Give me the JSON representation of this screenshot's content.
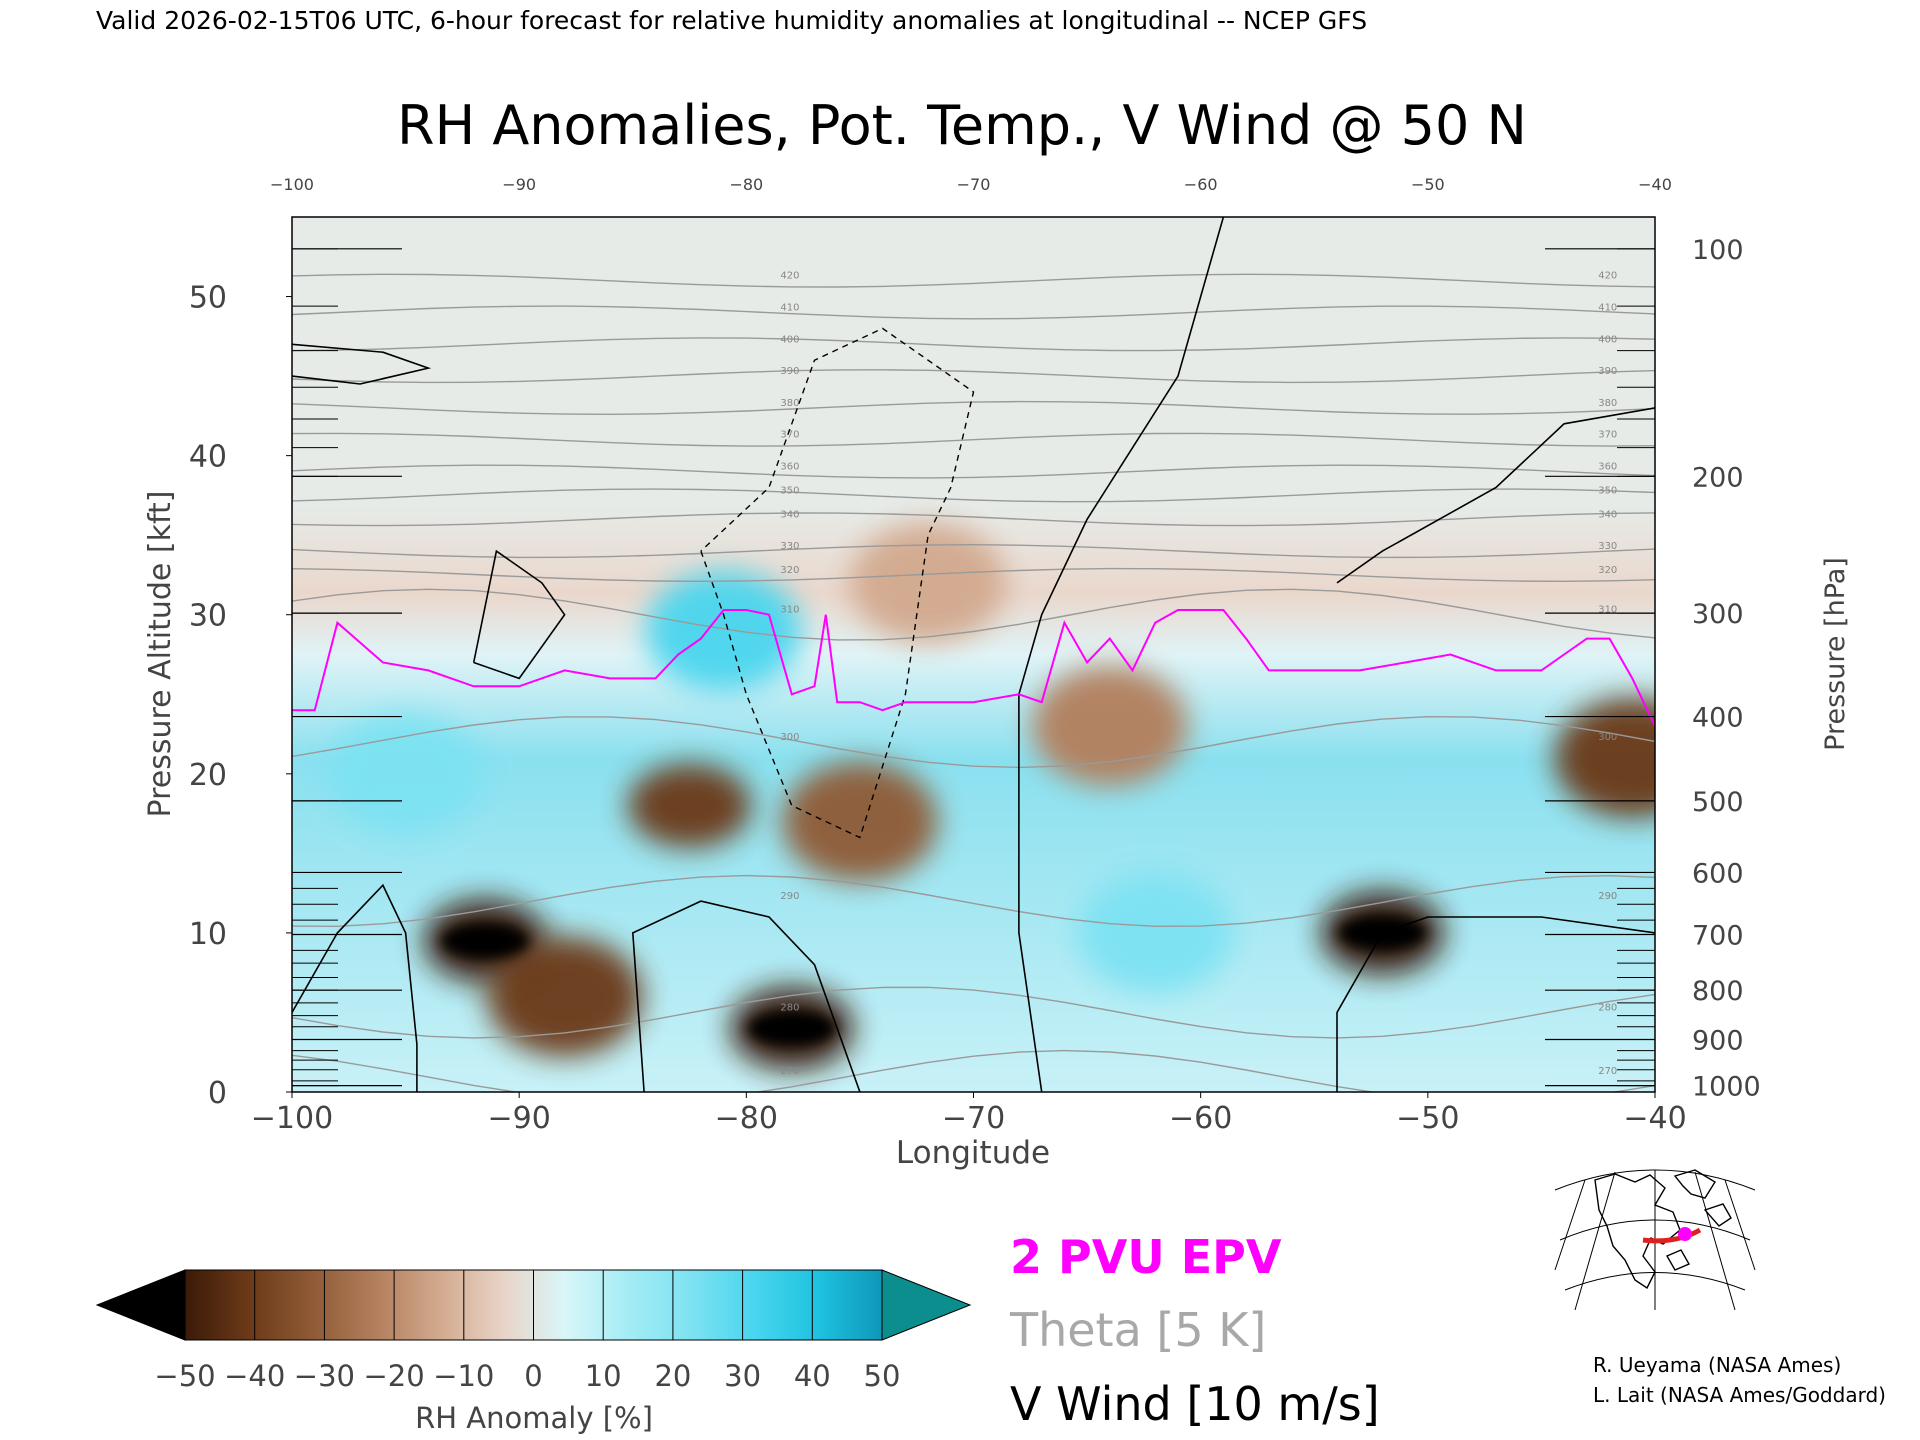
{
  "header": {
    "valid_line": "Valid 2026-02-15T06 UTC, 6-hour forecast for relative humidity anomalies at longitudinal -- NCEP GFS"
  },
  "chart_data": {
    "type": "heatmap",
    "title": "RH Anomalies, Pot. Temp., V Wind @ 50 N",
    "xlabel": "Longitude",
    "ylabel_left": "Pressure Altitude [kft]",
    "ylabel_right": "Pressure [hPa]",
    "xlim": [
      -100,
      -40
    ],
    "ylim": [
      0,
      55
    ],
    "x_ticks": [
      -100,
      -90,
      -80,
      -70,
      -60,
      -50,
      -40
    ],
    "y_ticks": [
      0,
      10,
      20,
      30,
      40,
      50
    ],
    "pressure_ticks": [
      {
        "hpa": "100",
        "kft": 53.0
      },
      {
        "hpa": "200",
        "kft": 38.7
      },
      {
        "hpa": "300",
        "kft": 30.1
      },
      {
        "hpa": "400",
        "kft": 23.6
      },
      {
        "hpa": "500",
        "kft": 18.3
      },
      {
        "hpa": "600",
        "kft": 13.8
      },
      {
        "hpa": "700",
        "kft": 9.9
      },
      {
        "hpa": "800",
        "kft": 6.4
      },
      {
        "hpa": "900",
        "kft": 3.3
      },
      {
        "hpa": "1000",
        "kft": 0.4
      }
    ],
    "pressure_minor_kft": [
      53.0,
      49.4,
      46.6,
      44.3,
      42.3,
      40.5,
      38.7,
      30.1,
      23.6,
      18.3,
      13.8,
      12.8,
      11.8,
      10.8,
      9.9,
      8.9,
      8.1,
      7.2,
      6.4,
      5.6,
      4.8,
      4.1,
      3.3,
      2.6,
      2.0,
      1.4,
      0.7,
      0.4
    ],
    "colorbar": {
      "label": "RH Anomaly [%]",
      "ticks": [
        "-50",
        "-40",
        "-30",
        "-20",
        "-10",
        "0",
        "10",
        "20",
        "30",
        "40",
        "50"
      ],
      "colors": [
        "#000000",
        "#3b1a08",
        "#6b3918",
        "#8f5a35",
        "#b37e5c",
        "#d2a98e",
        "#e8d3c6",
        "#d9f6f9",
        "#a4ecf5",
        "#7de2f2",
        "#48d5ee",
        "#1ec2e0",
        "#0f97b8",
        "#0a7f99",
        "#0d8e8e"
      ]
    },
    "legend": [
      {
        "label": "2 PVU EPV",
        "color": "#ff00ff"
      },
      {
        "label": "Theta [5 K]",
        "color": "#a8a8a8"
      },
      {
        "label": "V Wind [10 m/s]",
        "color": "#000000"
      }
    ],
    "theta_levels_K": [
      270,
      280,
      290,
      300,
      310,
      320,
      330,
      340,
      350,
      360,
      370,
      380,
      390,
      400,
      410,
      420
    ],
    "theta_contour_labels": [
      "270",
      "280",
      "290",
      "300",
      "310",
      "320",
      "330",
      "340",
      "350",
      "360",
      "370",
      "380",
      "390",
      "400",
      "410",
      "420"
    ],
    "pvu2_height_kft": {
      "x": [
        -100,
        -99,
        -98,
        -96,
        -94,
        -92,
        -90,
        -88,
        -86,
        -84,
        -83,
        -82,
        -81,
        -80,
        -79,
        -78,
        -77,
        -76.5,
        -76,
        -75,
        -74,
        -73,
        -72,
        -70,
        -68,
        -67,
        -66,
        -65,
        -64,
        -63,
        -62,
        -61,
        -60,
        -59,
        -58,
        -57,
        -55,
        -53,
        -51,
        -49,
        -47,
        -45,
        -43,
        -42,
        -41,
        -40
      ],
      "y": [
        24,
        24,
        29.5,
        27,
        26.5,
        25.5,
        25.5,
        26.5,
        26,
        26,
        27.5,
        28.5,
        30.3,
        30.3,
        30,
        25,
        25.5,
        30,
        24.5,
        24.5,
        24,
        24.5,
        24.5,
        24.5,
        25,
        24.5,
        29.5,
        27,
        28.5,
        26.5,
        29.5,
        30.3,
        30.3,
        30.3,
        28.5,
        26.5,
        26.5,
        26.5,
        27,
        27.5,
        26.5,
        26.5,
        28.5,
        28.5,
        26,
        23
      ]
    },
    "rh_anomaly_features": [
      {
        "lon": -91.5,
        "kft": 9.5,
        "anomaly": -50
      },
      {
        "lon": -88,
        "kft": 6,
        "anomaly": -40
      },
      {
        "lon": -82.5,
        "kft": 18,
        "anomaly": -45
      },
      {
        "lon": -78,
        "kft": 4,
        "anomaly": -50
      },
      {
        "lon": -75,
        "kft": 17,
        "anomaly": -35
      },
      {
        "lon": -64,
        "kft": 23,
        "anomaly": -20
      },
      {
        "lon": -52,
        "kft": 10,
        "anomaly": -50
      },
      {
        "lon": -41,
        "kft": 21,
        "anomaly": -40
      },
      {
        "lon": -72,
        "kft": 32,
        "anomaly": -15
      },
      {
        "lon": -95,
        "kft": 20,
        "anomaly": 25
      },
      {
        "lon": -81,
        "kft": 29,
        "anomaly": 35
      },
      {
        "lon": -62,
        "kft": 10,
        "anomaly": 30
      }
    ]
  },
  "map_inset": {
    "marker_color": "#ff00ff",
    "track_color": "#e02020"
  },
  "credits": [
    "R. Ueyama (NASA Ames)",
    "L. Lait (NASA Ames/Goddard)"
  ]
}
